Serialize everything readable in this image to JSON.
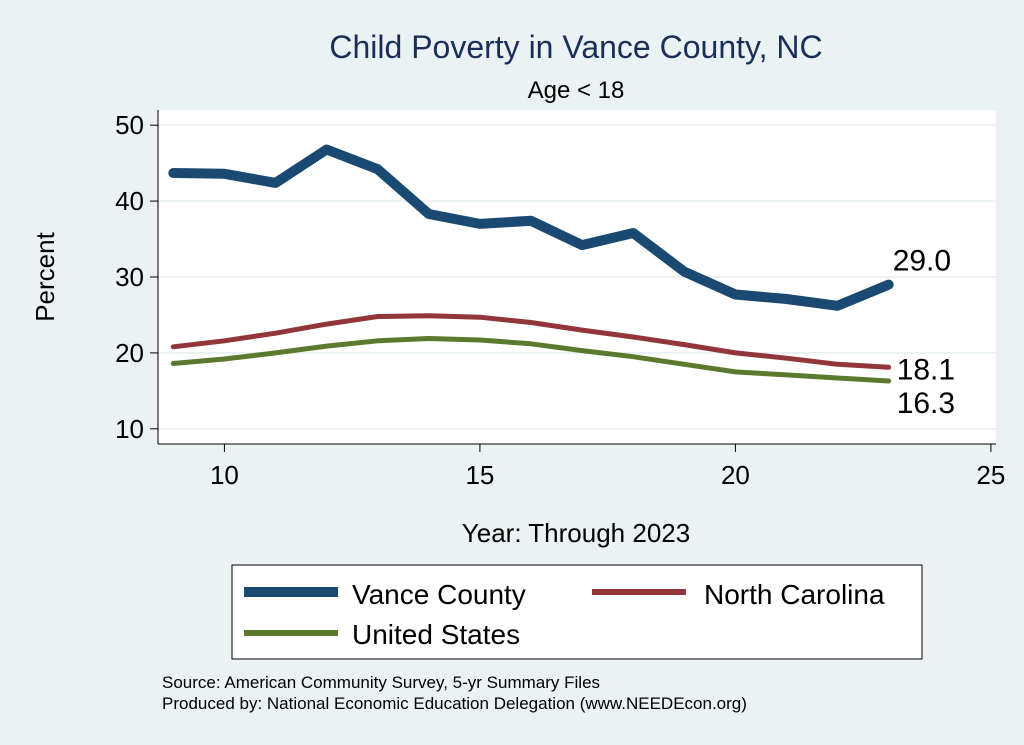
{
  "chart_data": {
    "type": "line",
    "title": "Child Poverty in Vance County, NC",
    "subtitle": "Age < 18",
    "xlabel": "Year: Through 2023",
    "ylabel": "Percent",
    "xlim": [
      8.7,
      25.1
    ],
    "ylim": [
      8,
      52
    ],
    "xticks": [
      10,
      15,
      20,
      25
    ],
    "yticks": [
      10,
      20,
      30,
      40,
      50
    ],
    "grid": true,
    "legend_position": "bottom",
    "series": [
      {
        "name": "Vance County",
        "color": "#1a4a72",
        "x": [
          9,
          10,
          11,
          12,
          13,
          14,
          15,
          16,
          17,
          18,
          19,
          20,
          21,
          22,
          23
        ],
        "values": [
          43.7,
          43.6,
          42.4,
          46.8,
          44.2,
          38.3,
          37.0,
          37.4,
          34.2,
          35.8,
          30.7,
          27.7,
          27.1,
          26.2,
          29.0
        ],
        "end_label": "29.0"
      },
      {
        "name": "North Carolina",
        "color": "#93363a",
        "x": [
          9,
          10,
          11,
          12,
          13,
          14,
          15,
          16,
          17,
          18,
          19,
          20,
          21,
          22,
          23
        ],
        "values": [
          20.8,
          21.6,
          22.6,
          23.8,
          24.8,
          24.9,
          24.7,
          24.0,
          23.0,
          22.1,
          21.1,
          20.0,
          19.3,
          18.5,
          18.1
        ],
        "end_label": "18.1"
      },
      {
        "name": "United States",
        "color": "#5b7a2d",
        "x": [
          9,
          10,
          11,
          12,
          13,
          14,
          15,
          16,
          17,
          18,
          19,
          20,
          21,
          22,
          23
        ],
        "values": [
          18.6,
          19.2,
          20.0,
          20.9,
          21.6,
          21.9,
          21.7,
          21.2,
          20.3,
          19.5,
          18.5,
          17.5,
          17.1,
          16.7,
          16.3
        ],
        "end_label": "16.3"
      }
    ]
  },
  "footer": {
    "source": "Source: American Community Survey, 5-yr Summary Files",
    "produced": "Produced by: National Economic Education Delegation (www.NEEDEcon.org)"
  }
}
